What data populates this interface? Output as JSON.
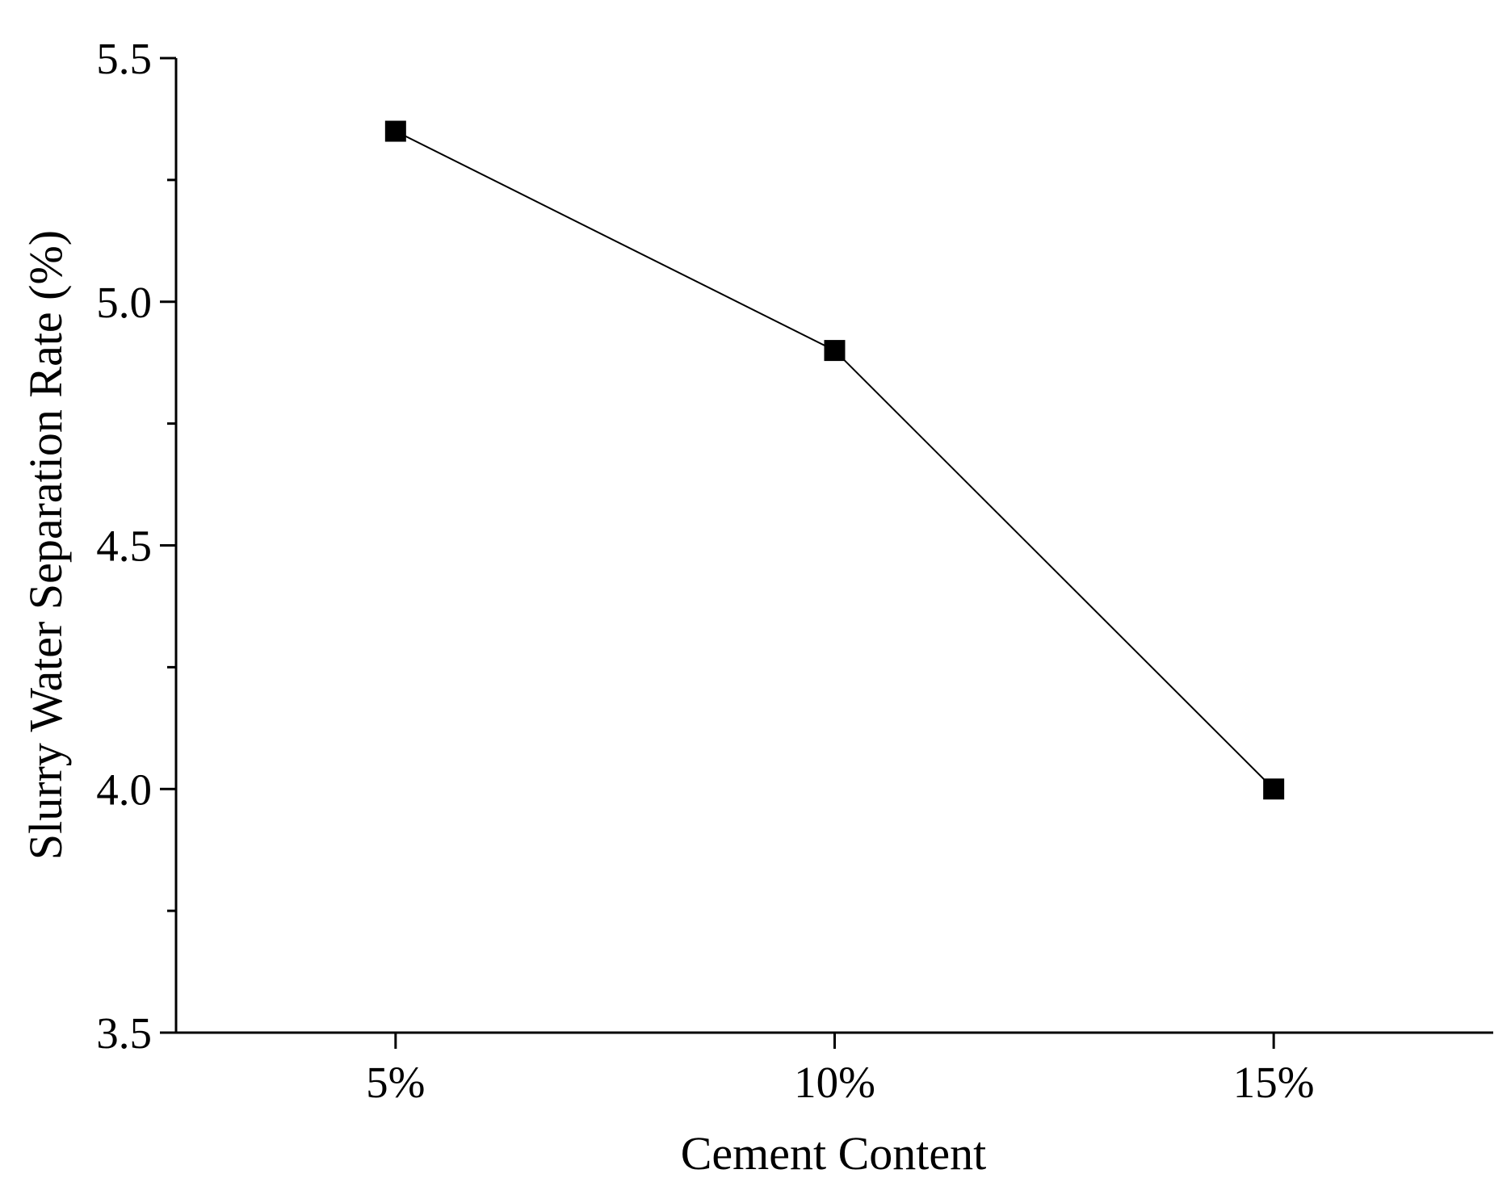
{
  "chart_data": {
    "type": "line",
    "x_label": "Cement Content",
    "y_label": "Slurry Water Separation Rate (%)",
    "categories": [
      "5%",
      "10%",
      "15%"
    ],
    "series": [
      {
        "color": "#000000",
        "values": [
          5.35,
          4.9,
          4.0
        ]
      }
    ],
    "ylim": [
      3.5,
      5.5
    ],
    "yticks": [
      3.5,
      {
        "value": 4,
        "label": "4.0"
      },
      4.5,
      {
        "value": 5,
        "label": "5.0"
      },
      5.5
    ],
    "grid": false
  }
}
